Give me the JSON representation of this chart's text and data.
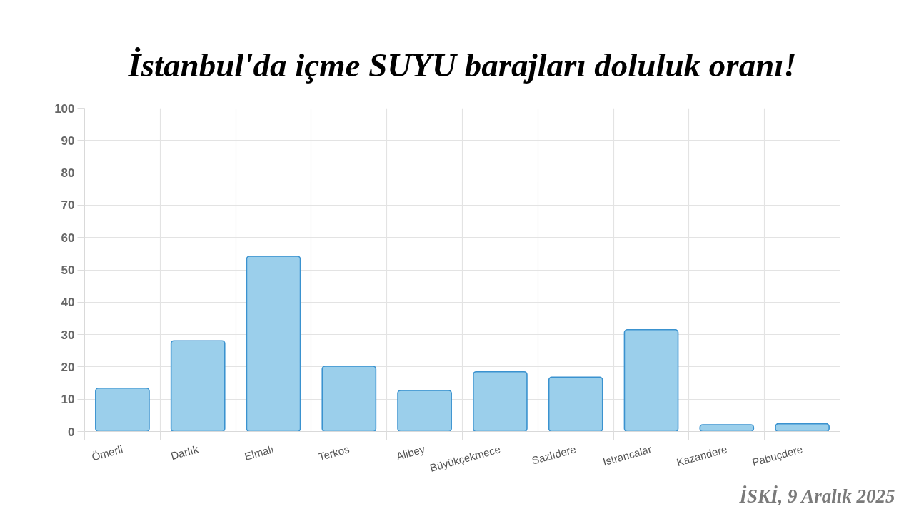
{
  "chart_data": {
    "type": "bar",
    "title": "İstanbul'da içme SUYU barajları doluluk oranı!",
    "categories": [
      "Ömerli",
      "Darlık",
      "Elmalı",
      "Terkos",
      "Alibey",
      "Büyükçekmece",
      "Sazlıdere",
      "Istrancalar",
      "Kazandere",
      "Pabuçdere"
    ],
    "values": [
      13.4,
      28.1,
      54.2,
      20.2,
      12.7,
      18.5,
      16.8,
      31.5,
      2.1,
      2.4
    ],
    "color": "#9bcfeb",
    "ylim": [
      0,
      100
    ],
    "yticks": [
      0,
      10,
      20,
      30,
      40,
      50,
      60,
      70,
      80,
      90,
      100
    ],
    "grid": true,
    "annotations": [
      "İSKİ, 9 Aralık 2025"
    ]
  }
}
